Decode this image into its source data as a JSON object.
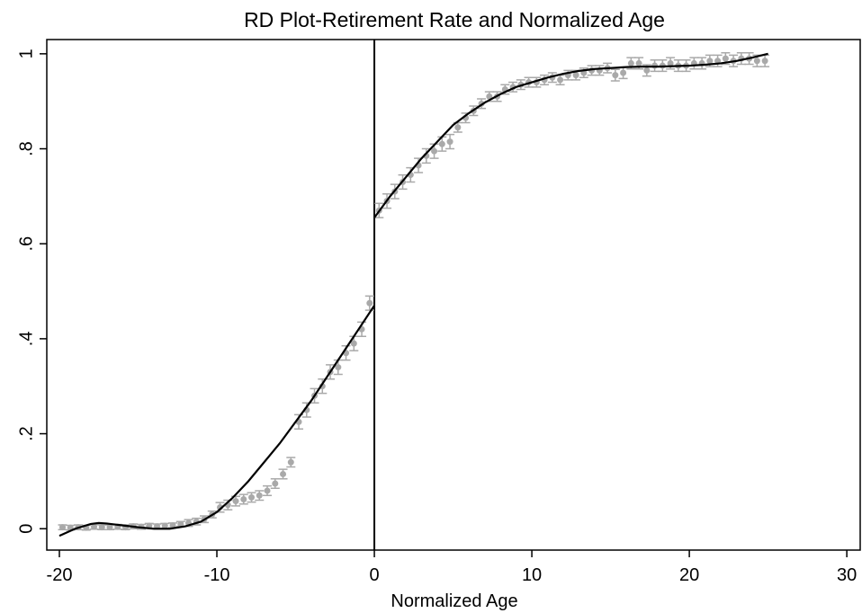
{
  "chart_data": {
    "type": "scatter",
    "title": "RD Plot-Retirement Rate and Normalized Age",
    "xlabel": "Normalized Age",
    "xlim": [
      -20.8,
      30.85
    ],
    "ylim": [
      -0.045,
      1.03
    ],
    "xticks": [
      -20,
      -10,
      0,
      10,
      20,
      30
    ],
    "yticks": [
      0,
      {
        "value": 0.2,
        "label": ".2"
      },
      {
        "value": 0.4,
        "label": ".4"
      },
      {
        "value": 0.6,
        "label": ".6"
      },
      {
        "value": 0.8,
        "label": ".8"
      },
      1
    ],
    "xline": 0,
    "series": [
      {
        "type": "scatter",
        "color": "#a9a9a9",
        "x": [
          -19.8,
          -19.3,
          -18.8,
          -18.3,
          -17.8,
          -17.3,
          -16.8,
          -16.3,
          -15.8,
          -15.3,
          -14.8,
          -14.3,
          -13.8,
          -13.3,
          -12.8,
          -12.3,
          -11.8,
          -11.3,
          -10.8,
          -10.3,
          -9.8,
          -9.3,
          -8.8,
          -8.3,
          -7.8,
          -7.3,
          -6.8,
          -6.3,
          -5.8,
          -5.3,
          -4.8,
          -4.3,
          -3.8,
          -3.3,
          -2.8,
          -2.3,
          -1.8,
          -1.3,
          -0.8,
          -0.3,
          0.3,
          0.8,
          1.3,
          1.8,
          2.3,
          2.8,
          3.3,
          3.8,
          4.3,
          4.8,
          5.3,
          5.8,
          6.3,
          6.8,
          7.3,
          7.8,
          8.3,
          8.8,
          9.3,
          9.8,
          10.3,
          10.8,
          11.3,
          11.8,
          12.3,
          12.8,
          13.3,
          13.8,
          14.3,
          14.8,
          15.3,
          15.8,
          16.3,
          16.8,
          17.3,
          17.8,
          18.3,
          18.8,
          19.3,
          19.8,
          20.3,
          20.8,
          21.3,
          21.8,
          22.3,
          22.8,
          23.3,
          23.8,
          24.3,
          24.8
        ],
        "values": [
          0.003,
          0.002,
          0.003,
          0.002,
          0.004,
          0.003,
          0.003,
          0.004,
          0.003,
          0.005,
          0.004,
          0.006,
          0.005,
          0.006,
          0.007,
          0.01,
          0.012,
          0.015,
          0.02,
          0.03,
          0.045,
          0.05,
          0.058,
          0.062,
          0.066,
          0.07,
          0.08,
          0.095,
          0.115,
          0.14,
          0.225,
          0.25,
          0.28,
          0.3,
          0.33,
          0.34,
          0.37,
          0.39,
          0.42,
          0.475,
          0.67,
          0.69,
          0.71,
          0.73,
          0.745,
          0.765,
          0.785,
          0.795,
          0.81,
          0.815,
          0.845,
          0.865,
          0.88,
          0.895,
          0.91,
          0.91,
          0.925,
          0.93,
          0.935,
          0.94,
          0.94,
          0.945,
          0.95,
          0.945,
          0.955,
          0.955,
          0.96,
          0.965,
          0.965,
          0.97,
          0.955,
          0.96,
          0.98,
          0.98,
          0.965,
          0.975,
          0.975,
          0.98,
          0.975,
          0.975,
          0.98,
          0.98,
          0.985,
          0.985,
          0.99,
          0.985,
          0.99,
          0.99,
          0.985,
          0.985
        ],
        "errors": [
          0.005,
          0.005,
          0.005,
          0.005,
          0.005,
          0.005,
          0.005,
          0.005,
          0.005,
          0.005,
          0.005,
          0.005,
          0.005,
          0.005,
          0.005,
          0.005,
          0.007,
          0.007,
          0.007,
          0.007,
          0.01,
          0.01,
          0.01,
          0.01,
          0.01,
          0.01,
          0.01,
          0.01,
          0.01,
          0.01,
          0.015,
          0.015,
          0.015,
          0.015,
          0.015,
          0.015,
          0.015,
          0.015,
          0.015,
          0.015,
          0.015,
          0.015,
          0.015,
          0.015,
          0.015,
          0.015,
          0.015,
          0.015,
          0.015,
          0.015,
          0.01,
          0.01,
          0.01,
          0.01,
          0.01,
          0.01,
          0.01,
          0.01,
          0.01,
          0.01,
          0.01,
          0.01,
          0.01,
          0.01,
          0.01,
          0.01,
          0.01,
          0.01,
          0.01,
          0.01,
          0.012,
          0.012,
          0.012,
          0.012,
          0.012,
          0.012,
          0.012,
          0.012,
          0.012,
          0.012,
          0.012,
          0.012,
          0.012,
          0.012,
          0.012,
          0.012,
          0.012,
          0.012,
          0.012,
          0.012
        ]
      },
      {
        "type": "line",
        "color": "#000000",
        "x": [
          -20,
          -19,
          -18,
          -17.5,
          -17,
          -16,
          -15,
          -14,
          -13,
          -12,
          -11,
          -10,
          -9,
          -8,
          -7,
          -6,
          -5,
          -4,
          -3,
          -2,
          -1,
          0
        ],
        "values": [
          -0.015,
          0.0,
          0.01,
          0.012,
          0.011,
          0.007,
          0.003,
          0.0,
          0.0,
          0.005,
          0.015,
          0.035,
          0.065,
          0.1,
          0.14,
          0.18,
          0.225,
          0.27,
          0.32,
          0.37,
          0.42,
          0.47
        ]
      },
      {
        "type": "line",
        "color": "#000000",
        "x": [
          0,
          1,
          2,
          3,
          4,
          5,
          6,
          7,
          8,
          9,
          10,
          11,
          12,
          13,
          14,
          15,
          16,
          17,
          18,
          19,
          20,
          21,
          22,
          23,
          24,
          25
        ],
        "values": [
          0.655,
          0.7,
          0.74,
          0.78,
          0.815,
          0.85,
          0.875,
          0.897,
          0.915,
          0.93,
          0.94,
          0.95,
          0.958,
          0.964,
          0.968,
          0.97,
          0.972,
          0.973,
          0.973,
          0.974,
          0.975,
          0.977,
          0.98,
          0.985,
          0.992,
          1.0
        ]
      }
    ]
  }
}
